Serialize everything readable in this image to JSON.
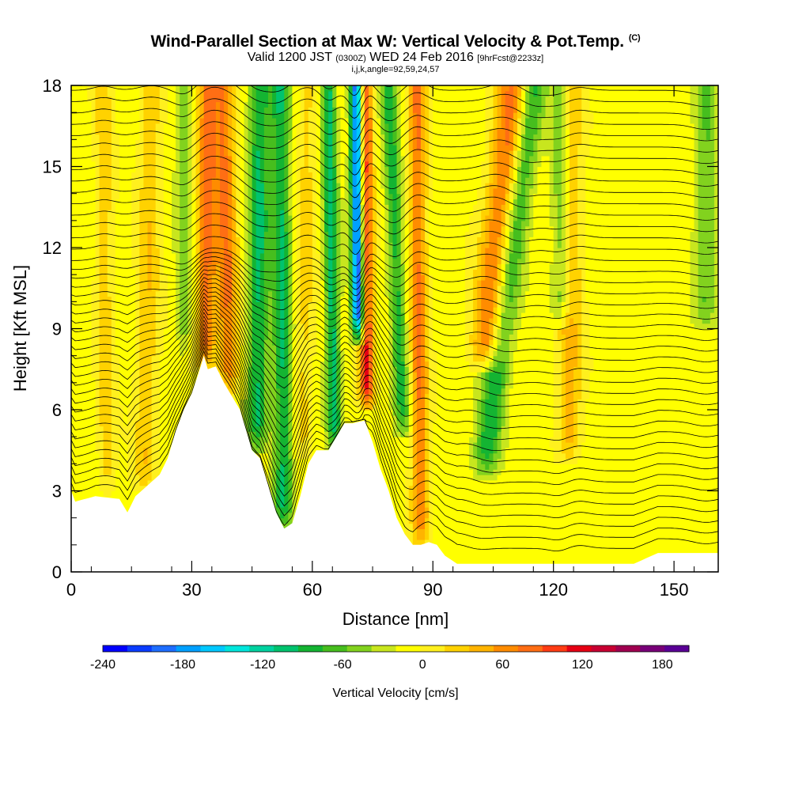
{
  "header": {
    "title": "Wind-Parallel Section at Max W: Vertical Velocity & Pot.Temp.",
    "title_mark": "(C)",
    "valid_prefix": "Valid 1200 JST",
    "valid_zulu": "(0300Z)",
    "valid_date": "WED 24 Feb 2016",
    "forecast": "[9hrFcst@2233z]",
    "params": "i,j,k,angle=92,59,24,57"
  },
  "chart_data": {
    "type": "heatmap",
    "xlabel": "Distance [nm]",
    "ylabel": "Height [Kft MSL]",
    "xlim": [
      0,
      161
    ],
    "ylim": [
      0,
      18
    ],
    "x_ticks": [
      0,
      30,
      60,
      90,
      120,
      150
    ],
    "x_tick_labels": [
      "0",
      "30",
      "60",
      "90",
      "120",
      "150"
    ],
    "y_ticks": [
      0,
      3,
      6,
      9,
      12,
      15,
      18
    ],
    "y_tick_labels": [
      "0",
      "3",
      "6",
      "9",
      "12",
      "15",
      "18"
    ],
    "field": "Vertical Velocity",
    "contours": "Pot.Temp.",
    "colorbar": {
      "label": "Vertical Velocity [cm/s]",
      "range": [
        -240,
        200
      ],
      "step": 20,
      "tick_values": [
        -240,
        -180,
        -120,
        -60,
        0,
        60,
        120,
        180
      ],
      "tick_labels": [
        "-240",
        "-180",
        "-120",
        "-60",
        "0",
        "60",
        "120",
        "180"
      ],
      "colors": [
        "#0000ff",
        "#0a3cff",
        "#1e6eff",
        "#00a0ff",
        "#00c8ff",
        "#00e6dc",
        "#00d2a0",
        "#00c36e",
        "#14b432",
        "#46be1e",
        "#82d21e",
        "#c8e61e",
        "#ffff00",
        "#fff01e",
        "#ffd200",
        "#ffb400",
        "#ff8c00",
        "#ff6e14",
        "#ff3c14",
        "#e60014",
        "#c80032",
        "#a00050",
        "#780078",
        "#5a0096"
      ]
    },
    "terrain_kft": [
      [
        0,
        3.0
      ],
      [
        1,
        2.6
      ],
      [
        6,
        2.8
      ],
      [
        12,
        2.7
      ],
      [
        14,
        2.2
      ],
      [
        16,
        2.8
      ],
      [
        19,
        3.2
      ],
      [
        22,
        3.6
      ],
      [
        24,
        4.2
      ],
      [
        26,
        5.2
      ],
      [
        28,
        6.0
      ],
      [
        30,
        6.6
      ],
      [
        32,
        7.5
      ],
      [
        33,
        8.0
      ],
      [
        34,
        7.5
      ],
      [
        36,
        7.6
      ],
      [
        38,
        7.0
      ],
      [
        40,
        6.5
      ],
      [
        42,
        6.0
      ],
      [
        44,
        5.0
      ],
      [
        45,
        4.5
      ],
      [
        47,
        4.2
      ],
      [
        49,
        3.2
      ],
      [
        51,
        2.2
      ],
      [
        53,
        1.6
      ],
      [
        55,
        1.8
      ],
      [
        57,
        2.8
      ],
      [
        59,
        4.0
      ],
      [
        61,
        4.5
      ],
      [
        64,
        4.5
      ],
      [
        66,
        5.0
      ],
      [
        68,
        5.5
      ],
      [
        70,
        5.5
      ],
      [
        73,
        5.6
      ],
      [
        75,
        4.8
      ],
      [
        77,
        3.8
      ],
      [
        79,
        3.0
      ],
      [
        81,
        2.0
      ],
      [
        83,
        1.4
      ],
      [
        85,
        1.0
      ],
      [
        87,
        1.0
      ],
      [
        89,
        1.1
      ],
      [
        91,
        1.0
      ],
      [
        93,
        0.6
      ],
      [
        96,
        0.3
      ],
      [
        100,
        0.3
      ],
      [
        110,
        0.3
      ],
      [
        120,
        0.3
      ],
      [
        130,
        0.3
      ],
      [
        140,
        0.3
      ],
      [
        146,
        0.7
      ],
      [
        152,
        0.7
      ],
      [
        161,
        0.7
      ]
    ],
    "updraft_bands": [
      {
        "x_top": 34,
        "x_base": 33,
        "w": 95,
        "width": 2.4,
        "z_min": 7.5
      },
      {
        "x_top": 38,
        "x_base": 40,
        "w": 90,
        "width": 2.6,
        "z_min": 6.5
      },
      {
        "x_top": 20,
        "x_base": 18,
        "w": 45,
        "width": 2.8,
        "z_min": 3.0
      },
      {
        "x_top": 73,
        "x_base": 74,
        "w": 135,
        "width": 1.8,
        "z_min": 6.0
      },
      {
        "x_top": 110,
        "x_base": 98,
        "w": 95,
        "width": 4.0,
        "z_min": 7.5
      },
      {
        "x_top": 124,
        "x_base": 124,
        "w": 60,
        "width": 3.0,
        "z_min": 4.0
      },
      {
        "x_top": 86,
        "x_base": 87,
        "w": 90,
        "width": 2.2,
        "z_min": 1.0
      },
      {
        "x_top": 8,
        "x_base": 9,
        "w": 40,
        "width": 2.2,
        "z_min": 2.8
      },
      {
        "x_top": 59,
        "x_base": 57,
        "w": 35,
        "width": 2.6,
        "z_min": 4.2
      }
    ],
    "downdraft_bands": [
      {
        "x_top": 71,
        "x_base": 72,
        "w": -235,
        "width": 1.6,
        "z_min": 8.5
      },
      {
        "x_top": 47,
        "x_base": 46,
        "w": -95,
        "width": 2.6,
        "z_min": 4.5
      },
      {
        "x_top": 115,
        "x_base": 100,
        "w": -85,
        "width": 3.2,
        "z_min": 3.5
      },
      {
        "x_top": 122,
        "x_base": 122,
        "w": -70,
        "width": 2.4,
        "z_min": 9.0
      },
      {
        "x_top": 79,
        "x_base": 84,
        "w": -80,
        "width": 2.0,
        "z_min": 5.0
      },
      {
        "x_top": 28,
        "x_base": 28,
        "w": -45,
        "width": 2.0,
        "z_min": 8.0
      },
      {
        "x_top": 52,
        "x_base": 53,
        "w": -95,
        "width": 2.4,
        "z_min": 1.5
      },
      {
        "x_top": 64,
        "x_base": 66,
        "w": -105,
        "width": 1.8,
        "z_min": 4.5
      },
      {
        "x_top": 158,
        "x_base": 158,
        "w": -50,
        "width": 3.0,
        "z_min": 9.0
      }
    ]
  }
}
